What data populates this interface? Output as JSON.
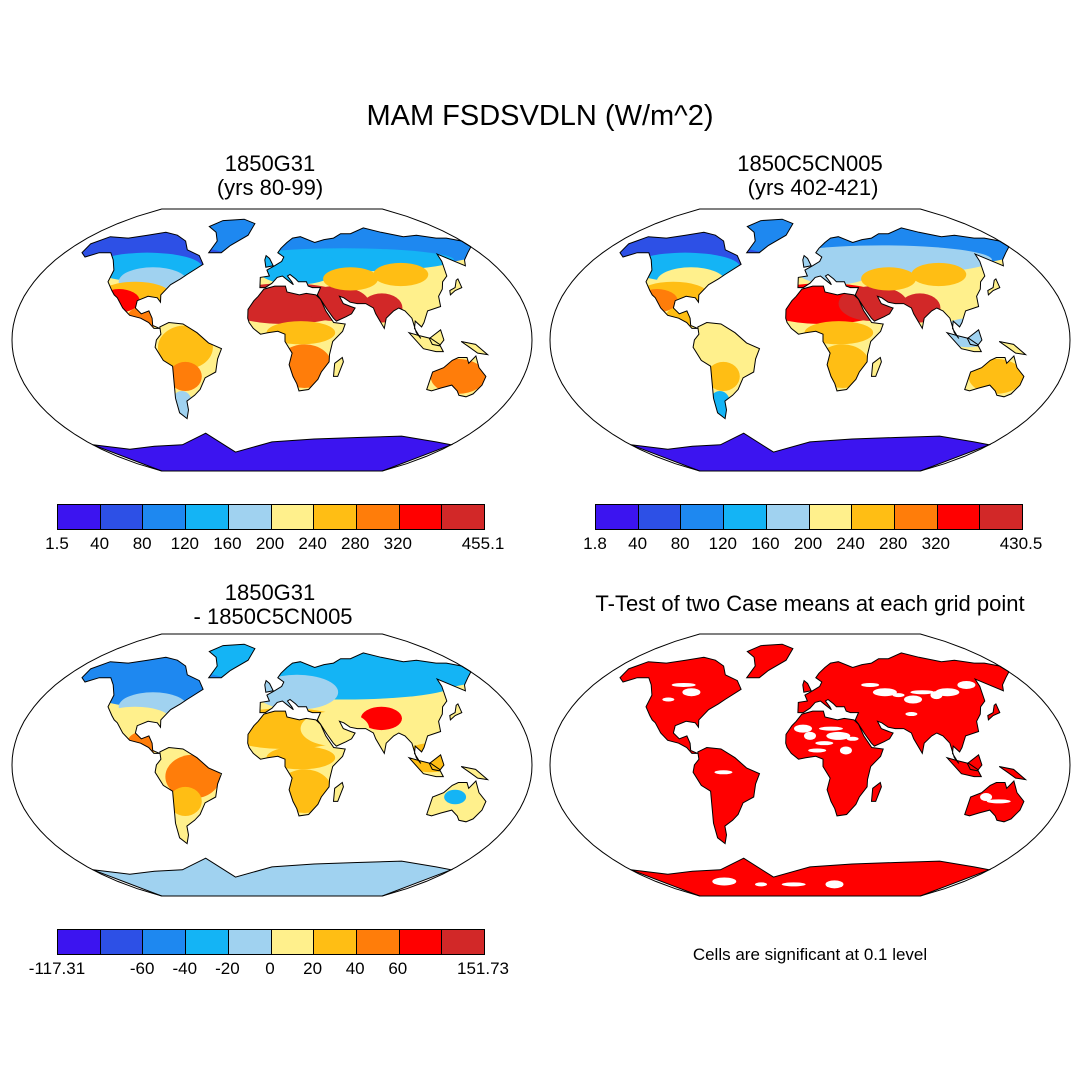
{
  "title": "MAM FSDSVDLN (W/m^2)",
  "panels": [
    {
      "title_line1": "1850G31",
      "title_line2": "(yrs 80-99)",
      "map_name": "map-1850g31"
    },
    {
      "title_line1": "1850C5CN005",
      "title_line2": " (yrs 402-421)",
      "map_name": "map-1850c5cn005"
    },
    {
      "title_line1": "1850G31",
      "title_line2": " - 1850C5CN005",
      "map_name": "map-difference"
    },
    {
      "title_line1": "T-Test of two Case means at each grid point",
      "title_line2": "",
      "map_name": "map-ttest"
    }
  ],
  "colorbars": [
    {
      "labels": [
        "1.5",
        "40",
        "80",
        "120",
        "160",
        "200",
        "240",
        "280",
        "320",
        "455.1"
      ]
    },
    {
      "labels": [
        "1.8",
        "40",
        "80",
        "120",
        "160",
        "200",
        "240",
        "280",
        "320",
        "430.5"
      ]
    },
    {
      "labels": [
        "-117.31",
        "-60",
        "-40",
        "-20",
        "0",
        "20",
        "40",
        "60",
        "151.73"
      ]
    }
  ],
  "colors": [
    "#3c14f0",
    "#2d50e6",
    "#1e88f0",
    "#14b4f5",
    "#a0d2f0",
    "#fff08c",
    "#ffbe14",
    "#ff7d0a",
    "#ff0000",
    "#d22828"
  ],
  "significance_color": "#ff0000",
  "note": "Cells are significant at 0.1 level"
}
